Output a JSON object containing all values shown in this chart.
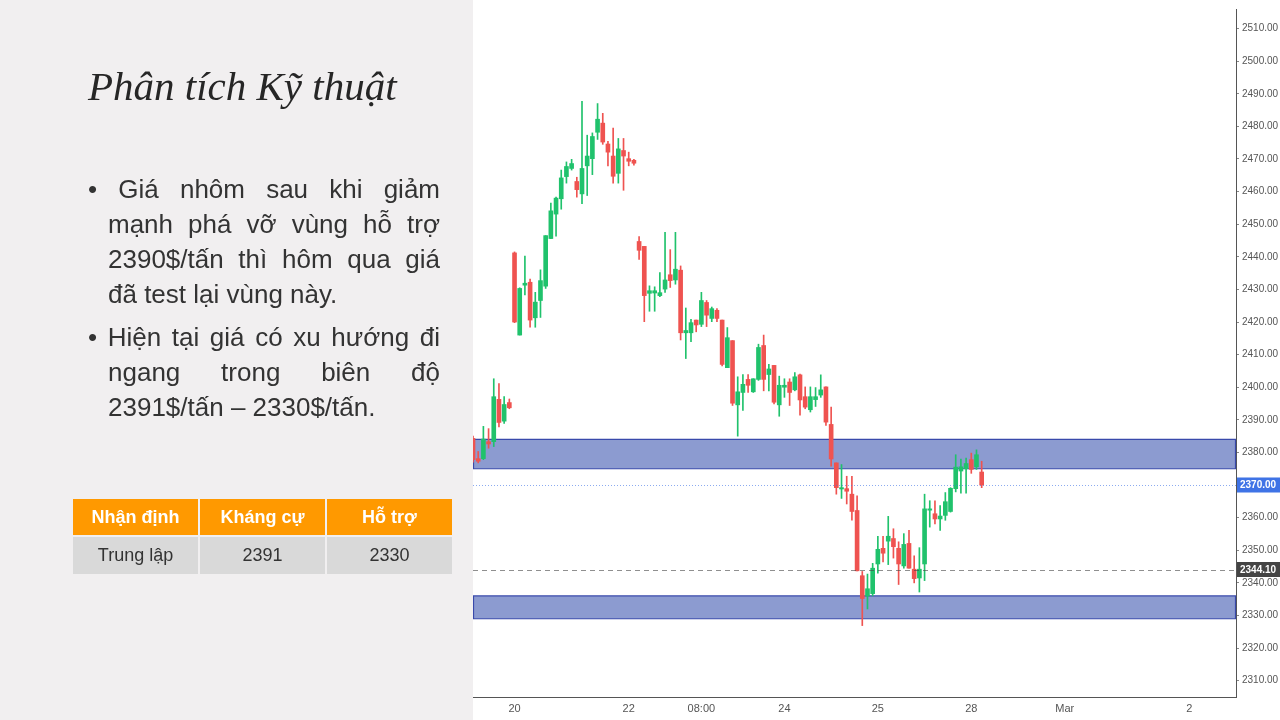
{
  "chart_data": [
    {
      "type": "other",
      "title": "Phân tích Kỹ thuật",
      "annotations": [
        "• Giá nhôm sau khi giảm mạnh phá vỡ vùng hỗ trợ 2390$/tấn thì hôm qua giá đã test lại vùng này.",
        "• Hiện tại giá có xu hướng đi ngang trong biên độ 2391$/tấn – 2330$/tấn."
      ]
    },
    {
      "type": "other",
      "categories": [
        "Nhận định",
        "Kháng cự",
        "Hỗ trợ"
      ],
      "annotations": [
        "Trung lập",
        "2391",
        "2330"
      ]
    },
    {
      "type": "candlestick",
      "categories": [
        null,
        null,
        null,
        null,
        null,
        null,
        null,
        null,
        "20",
        null,
        null,
        null,
        null,
        null,
        null,
        null,
        null,
        null,
        null,
        null,
        null,
        null,
        null,
        null,
        null,
        null,
        null,
        null,
        null,
        null,
        "22",
        null,
        null,
        null,
        null,
        null,
        null,
        null,
        null,
        null,
        null,
        null,
        null,
        null,
        "08:00",
        null,
        null,
        null,
        null,
        null,
        null,
        null,
        null,
        null,
        null,
        null,
        null,
        null,
        null,
        null,
        "24",
        null,
        null,
        null,
        null,
        null,
        null,
        null,
        null,
        null,
        null,
        null,
        null,
        null,
        null,
        null,
        null,
        null,
        "25",
        null,
        null,
        null,
        null,
        null,
        null,
        null,
        null,
        null,
        null,
        null,
        null,
        null,
        null,
        null,
        null,
        null,
        "28",
        null,
        null,
        null,
        null,
        null,
        null,
        null,
        null,
        null,
        null,
        null,
        null,
        null,
        null,
        null,
        null,
        null,
        "Mar",
        null,
        null,
        null,
        null,
        null,
        null,
        null,
        null,
        null,
        null,
        null,
        null,
        null,
        null,
        null,
        null,
        null,
        null,
        null,
        null,
        null,
        null,
        null,
        "2",
        null,
        null,
        null,
        null,
        null,
        null,
        null,
        null,
        null
      ],
      "ohlc": [
        [
          2384.3,
          2385.0,
          2377.0,
          2377.8
        ],
        [
          2378.1,
          2380.3,
          2376.8,
          2377.3
        ],
        [
          2378.1,
          2388.0,
          2377.8,
          2384.1
        ],
        [
          2383.3,
          2387.3,
          2381.3,
          2382.6
        ],
        [
          2383.3,
          2402.6,
          2381.8,
          2397.1
        ],
        [
          2396.3,
          2401.1,
          2387.8,
          2389.2
        ],
        [
          2389.6,
          2397.1,
          2388.9,
          2394.7
        ],
        [
          2395.3,
          2396.4,
          2393.4,
          2393.7
        ],
        [
          2441.2,
          2441.5,
          2419.8,
          2420.0
        ],
        [
          2416.0,
          2430.5,
          2416.0,
          2430.3
        ],
        [
          2431.3,
          2440.2,
          2428.3,
          2431.9
        ],
        [
          2432.2,
          2433.2,
          2418.4,
          2420.6
        ],
        [
          2421.3,
          2429.1,
          2418.4,
          2426.1
        ],
        [
          2426.6,
          2436.0,
          2421.4,
          2432.7
        ],
        [
          2431.0,
          2446.5,
          2430.3,
          2446.5
        ],
        [
          2445.6,
          2456.5,
          2445.6,
          2454.1
        ],
        [
          2453.1,
          2458.3,
          2446.3,
          2458.0
        ],
        [
          2457.8,
          2466.6,
          2454.6,
          2464.2
        ],
        [
          2464.6,
          2469.1,
          2462.6,
          2467.7
        ],
        [
          2467.1,
          2469.9,
          2466.6,
          2468.6
        ],
        [
          2463.1,
          2464.4,
          2458.3,
          2460.6
        ],
        [
          2459.3,
          2487.7,
          2456.3,
          2467.1
        ],
        [
          2467.9,
          2477.3,
          2458.8,
          2470.9
        ],
        [
          2470.1,
          2478.0,
          2465.2,
          2476.9
        ],
        [
          2478.2,
          2487.0,
          2476.0,
          2482.2
        ],
        [
          2481.0,
          2484.0,
          2474.5,
          2475.2
        ],
        [
          2474.6,
          2475.4,
          2467.9,
          2472.1
        ],
        [
          2470.9,
          2479.5,
          2462.6,
          2464.7
        ],
        [
          2465.6,
          2476.3,
          2462.6,
          2473.1
        ],
        [
          2472.6,
          2476.3,
          2460.4,
          2470.9
        ],
        [
          2470.1,
          2472.1,
          2467.9,
          2469.3
        ],
        [
          2469.6,
          2469.9,
          2468.1,
          2468.7
        ],
        [
          2444.7,
          2446.2,
          2439.2,
          2442.0
        ],
        [
          2443.2,
          2443.2,
          2420.1,
          2428.1
        ],
        [
          2428.8,
          2431.1,
          2423.3,
          2429.6
        ],
        [
          2428.9,
          2430.8,
          2423.3,
          2429.6
        ],
        [
          2428.1,
          2435.2,
          2427.8,
          2429.0
        ],
        [
          2430.1,
          2447.5,
          2429.1,
          2432.9
        ],
        [
          2434.5,
          2442.2,
          2430.6,
          2432.7
        ],
        [
          2432.9,
          2447.5,
          2431.6,
          2436.2
        ],
        [
          2435.9,
          2437.2,
          2414.5,
          2416.7
        ],
        [
          2416.7,
          2424.3,
          2408.8,
          2417.4
        ],
        [
          2416.7,
          2420.8,
          2414.0,
          2419.8
        ],
        [
          2420.6,
          2420.6,
          2417.0,
          2419.1
        ],
        [
          2419.3,
          2429.1,
          2418.6,
          2426.6
        ],
        [
          2426.0,
          2426.6,
          2418.6,
          2422.1
        ],
        [
          2421.1,
          2424.6,
          2420.1,
          2424.1
        ],
        [
          2423.6,
          2424.1,
          2420.1,
          2421.1
        ],
        [
          2420.6,
          2420.6,
          2406.5,
          2407.0
        ],
        [
          2406.0,
          2418.3,
          2406.0,
          2415.2
        ],
        [
          2414.3,
          2414.3,
          2394.4,
          2395.1
        ],
        [
          2394.6,
          2403.2,
          2385.0,
          2398.6
        ],
        [
          2398.4,
          2403.9,
          2392.9,
          2400.9
        ],
        [
          2402.4,
          2403.9,
          2398.4,
          2400.6
        ],
        [
          2398.6,
          2402.6,
          2398.4,
          2402.6
        ],
        [
          2402.4,
          2413.2,
          2402.1,
          2412.2
        ],
        [
          2412.8,
          2416.0,
          2398.9,
          2402.4
        ],
        [
          2403.9,
          2407.0,
          2398.9,
          2405.6
        ],
        [
          2406.7,
          2406.7,
          2394.9,
          2395.4
        ],
        [
          2394.6,
          2403.4,
          2391.1,
          2400.6
        ],
        [
          2400.0,
          2402.6,
          2396.9,
          2400.6
        ],
        [
          2401.6,
          2402.6,
          2394.4,
          2398.4
        ],
        [
          2399.2,
          2404.5,
          2398.9,
          2403.2
        ],
        [
          2403.8,
          2404.0,
          2391.4,
          2396.1
        ],
        [
          2397.1,
          2400.1,
          2393.4,
          2393.9
        ],
        [
          2393.1,
          2400.1,
          2392.4,
          2397.1
        ],
        [
          2396.2,
          2399.9,
          2394.1,
          2397.1
        ],
        [
          2397.6,
          2403.8,
          2396.9,
          2399.2
        ],
        [
          2400.1,
          2400.1,
          2388.3,
          2389.3
        ],
        [
          2388.6,
          2393.9,
          2375.8,
          2378.0
        ],
        [
          2376.8,
          2376.8,
          2367.2,
          2369.2
        ],
        [
          2368.8,
          2376.3,
          2365.9,
          2369.2
        ],
        [
          2368.9,
          2372.7,
          2364.2,
          2368.1
        ],
        [
          2367.2,
          2372.7,
          2359.2,
          2361.9
        ],
        [
          2362.2,
          2366.7,
          2343.7,
          2343.7
        ],
        [
          2342.2,
          2343.5,
          2326.9,
          2335.2
        ],
        [
          2336.0,
          2342.7,
          2332.0,
          2338.2
        ],
        [
          2336.7,
          2346.0,
          2336.0,
          2344.5
        ],
        [
          2345.8,
          2354.3,
          2343.0,
          2350.3
        ],
        [
          2350.6,
          2354.3,
          2346.4,
          2349.1
        ],
        [
          2352.8,
          2360.4,
          2345.6,
          2354.3
        ],
        [
          2353.6,
          2356.6,
          2347.6,
          2351.1
        ],
        [
          2350.6,
          2352.6,
          2339.5,
          2345.8
        ],
        [
          2345.2,
          2355.1,
          2344.5,
          2351.8
        ],
        [
          2352.1,
          2356.1,
          2344.5,
          2344.5
        ],
        [
          2344.2,
          2348.3,
          2340.0,
          2341.3
        ],
        [
          2341.5,
          2350.8,
          2337.2,
          2344.2
        ],
        [
          2345.8,
          2367.2,
          2340.7,
          2362.7
        ],
        [
          2362.3,
          2365.2,
          2357.1,
          2362.7
        ],
        [
          2361.2,
          2365.2,
          2358.1,
          2359.6
        ],
        [
          2359.6,
          2363.7,
          2356.1,
          2360.5
        ],
        [
          2360.7,
          2367.7,
          2359.2,
          2364.9
        ],
        [
          2361.9,
          2369.2,
          2361.7,
          2369.0
        ],
        [
          2368.9,
          2379.3,
          2367.9,
          2375.5
        ],
        [
          2374.3,
          2378.0,
          2367.5,
          2375.6
        ],
        [
          2375.0,
          2378.3,
          2367.5,
          2376.6
        ],
        [
          2377.8,
          2379.8,
          2373.6,
          2374.8
        ],
        [
          2375.6,
          2380.8,
          2374.8,
          2379.3
        ],
        [
          2374.0,
          2377.3,
          2369.2,
          2370.0
        ],
        null,
        null,
        null,
        null,
        null,
        null,
        null,
        null,
        null,
        null,
        null,
        null,
        null,
        null,
        null,
        null,
        null,
        null,
        null,
        null,
        null,
        null,
        null,
        null,
        null,
        null,
        null,
        null,
        null,
        null,
        null,
        null,
        null,
        null,
        null,
        null,
        null,
        null,
        null,
        null,
        null,
        null,
        null,
        null,
        null,
        null,
        null,
        null,
        null
      ],
      "ylim": [
        2305,
        2516
      ],
      "yticks": [
        {
          "value": 2310,
          "label": "2310.00"
        },
        {
          "value": 2320,
          "label": "2320.00"
        },
        {
          "value": 2330,
          "label": "2330.00"
        },
        {
          "value": 2340,
          "label": "2340.00"
        },
        {
          "value": 2350,
          "label": "2350.00"
        },
        {
          "value": 2360,
          "label": "2360.00"
        },
        {
          "value": 2370,
          "label": null
        },
        {
          "value": 2380,
          "label": "2380.00"
        },
        {
          "value": 2390,
          "label": "2390.00"
        },
        {
          "value": 2400,
          "label": "2400.00"
        },
        {
          "value": 2410,
          "label": "2410.00"
        },
        {
          "value": 2420,
          "label": "2420.00"
        },
        {
          "value": 2430,
          "label": "2430.00"
        },
        {
          "value": 2440,
          "label": "2440.00"
        },
        {
          "value": 2450,
          "label": "2450.00"
        },
        {
          "value": 2460,
          "label": "2460.00"
        },
        {
          "value": 2470,
          "label": "2470.00"
        },
        {
          "value": 2480,
          "label": "2480.00"
        },
        {
          "value": 2490,
          "label": "2490.00"
        },
        {
          "value": 2500,
          "label": "2500.00"
        },
        {
          "value": 2510,
          "label": "2510.00"
        }
      ],
      "bands": [
        {
          "axis": "y",
          "from": 2375,
          "to": 2384,
          "color": "#8c9bd0"
        },
        {
          "axis": "y",
          "from": 2329,
          "to": 2336,
          "color": "#8c9bd0"
        }
      ],
      "ref_lines": [
        {
          "axis": "y",
          "value": 2370,
          "label": "2370.00",
          "color": "#3f73e6",
          "line_style": "dotted"
        },
        {
          "axis": "y",
          "value": 2344.1,
          "label": "2344.10",
          "color": "#444444",
          "line_style": "dashed"
        }
      ]
    }
  ]
}
